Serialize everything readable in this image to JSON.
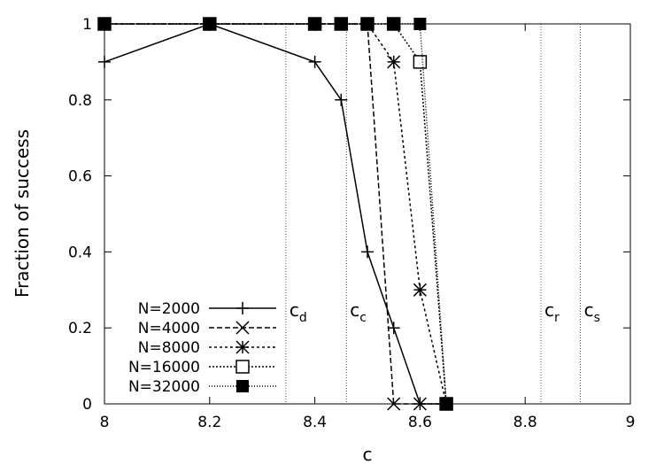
{
  "chart_data": {
    "type": "line",
    "title": "",
    "xlabel": "c",
    "ylabel": "Fraction of success",
    "xlim": [
      8,
      9
    ],
    "ylim": [
      0,
      1
    ],
    "x_ticks": [
      "8",
      "8.2",
      "8.4",
      "8.6",
      "8.8",
      "9"
    ],
    "y_ticks": [
      "0",
      "0.2",
      "0.4",
      "0.6",
      "0.8",
      "1"
    ],
    "grid": false,
    "legend_position": "bottom-left",
    "vertical_lines": [
      {
        "label": "c",
        "sub": "d",
        "x": 8.345
      },
      {
        "label": "c",
        "sub": "c",
        "x": 8.46
      },
      {
        "label": "c",
        "sub": "r",
        "x": 8.83
      },
      {
        "label": "c",
        "sub": "s",
        "x": 8.905
      }
    ],
    "series": [
      {
        "name": "N=2000",
        "marker": "plus",
        "dash": "solid",
        "points": [
          [
            8.0,
            0.9
          ],
          [
            8.2,
            1.0
          ],
          [
            8.4,
            0.9
          ],
          [
            8.45,
            0.8
          ],
          [
            8.5,
            0.4
          ],
          [
            8.55,
            0.2
          ],
          [
            8.6,
            0.0
          ],
          [
            8.65,
            0.0
          ]
        ]
      },
      {
        "name": "N=4000",
        "marker": "cross",
        "dash": "dashed",
        "points": [
          [
            8.0,
            1.0
          ],
          [
            8.2,
            1.0
          ],
          [
            8.4,
            1.0
          ],
          [
            8.45,
            1.0
          ],
          [
            8.5,
            1.0
          ],
          [
            8.55,
            0.0
          ],
          [
            8.6,
            0.0
          ],
          [
            8.65,
            0.0
          ]
        ]
      },
      {
        "name": "N=8000",
        "marker": "star",
        "dash": "dotted",
        "points": [
          [
            8.0,
            1.0
          ],
          [
            8.2,
            1.0
          ],
          [
            8.4,
            1.0
          ],
          [
            8.45,
            1.0
          ],
          [
            8.5,
            1.0
          ],
          [
            8.55,
            0.9
          ],
          [
            8.6,
            0.3
          ],
          [
            8.65,
            0.0
          ]
        ]
      },
      {
        "name": "N=16000",
        "marker": "open-square",
        "dash": "densedot",
        "points": [
          [
            8.0,
            1.0
          ],
          [
            8.2,
            1.0
          ],
          [
            8.4,
            1.0
          ],
          [
            8.45,
            1.0
          ],
          [
            8.5,
            1.0
          ],
          [
            8.55,
            1.0
          ],
          [
            8.6,
            0.9
          ],
          [
            8.65,
            0.0
          ]
        ]
      },
      {
        "name": "N=32000",
        "marker": "filled-square",
        "dash": "finedot",
        "points": [
          [
            8.0,
            1.0
          ],
          [
            8.2,
            1.0
          ],
          [
            8.4,
            1.0
          ],
          [
            8.45,
            1.0
          ],
          [
            8.5,
            1.0
          ],
          [
            8.55,
            1.0
          ],
          [
            8.6,
            1.0
          ],
          [
            8.65,
            0.0
          ]
        ]
      }
    ]
  }
}
